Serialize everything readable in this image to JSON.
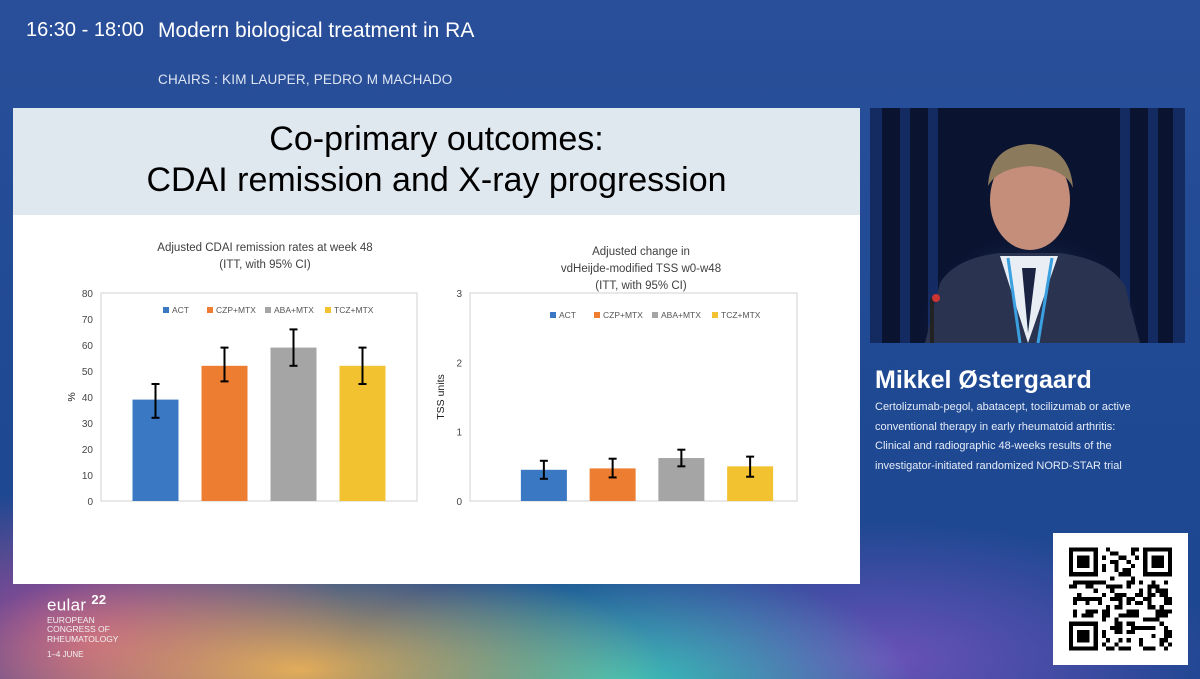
{
  "header": {
    "time": "16:30 - 18:00",
    "title": "Modern biological treatment in RA",
    "chairs": "CHAIRS : KIM LAUPER, PEDRO M MACHADO"
  },
  "slide": {
    "title_line1": "Co-primary outcomes:",
    "title_line2": "CDAI remission and X-ray progression"
  },
  "chart_data": [
    {
      "type": "bar",
      "title": [
        "Adjusted CDAI remission rates at week 48",
        "(ITT, with 95% CI)"
      ],
      "ylabel": "%",
      "ylim": [
        0,
        80
      ],
      "yticks": [
        0,
        10,
        20,
        30,
        40,
        50,
        60,
        70,
        80
      ],
      "legend_position": "top",
      "categories": [
        "ACT",
        "CZP+MTX",
        "ABA+MTX",
        "TCZ+MTX"
      ],
      "values": [
        39,
        52,
        59,
        52
      ],
      "ci_low": [
        32,
        46,
        52,
        45
      ],
      "ci_high": [
        45,
        59,
        66,
        59
      ],
      "colors": [
        "#3a78c4",
        "#ed7d31",
        "#a5a5a5",
        "#f2c230"
      ]
    },
    {
      "type": "bar",
      "title": [
        "Adjusted change in",
        "vdHeijde-modified TSS w0-w48",
        "(ITT, with 95% CI)"
      ],
      "ylabel": "TSS units",
      "ylim": [
        0,
        3
      ],
      "yticks": [
        0,
        1,
        2,
        3
      ],
      "legend_position": "top",
      "categories": [
        "ACT",
        "CZP+MTX",
        "ABA+MTX",
        "TCZ+MTX"
      ],
      "values": [
        0.45,
        0.47,
        0.62,
        0.5
      ],
      "ci_low": [
        0.32,
        0.34,
        0.5,
        0.35
      ],
      "ci_high": [
        0.58,
        0.61,
        0.74,
        0.64
      ],
      "colors": [
        "#3a78c4",
        "#ed7d31",
        "#a5a5a5",
        "#f2c230"
      ]
    }
  ],
  "speaker": {
    "name": "Mikkel Østergaard",
    "talk_lines": [
      "Certolizumab-pegol, abatacept, tocilizumab or active",
      "conventional therapy in early rheumatoid  arthritis:",
      "Clinical and radiographic 48-weeks results of the",
      "investigator-initiated randomized NORD-STAR trial"
    ]
  },
  "logo": {
    "word": "eular",
    "year": "22",
    "line1": "EUROPEAN",
    "line2": "CONGRESS OF",
    "line3": "RHEUMATOLOGY",
    "dates": "1–4 JUNE"
  },
  "icons": {
    "qr": "qr-code-icon"
  }
}
